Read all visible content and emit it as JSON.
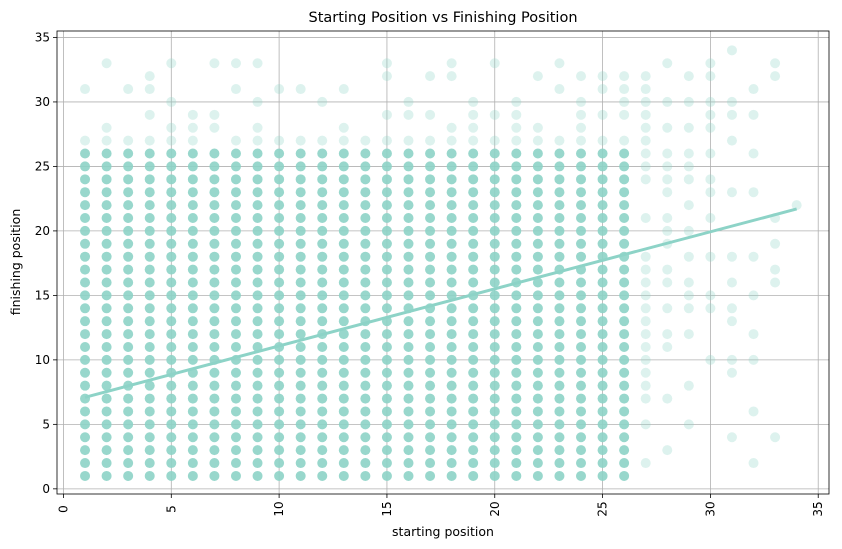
{
  "chart_data": {
    "type": "scatter",
    "title": "Starting Position vs Finishing Position",
    "xlabel": "starting position",
    "ylabel": "finishing position",
    "xlim": [
      -0.3,
      35.5
    ],
    "ylim": [
      -0.4,
      35.5
    ],
    "xticks": [
      0,
      5,
      10,
      15,
      20,
      25,
      30,
      35
    ],
    "yticks": [
      0,
      5,
      10,
      15,
      20,
      25,
      30,
      35
    ],
    "grid": true,
    "point_color": "#8dd3c7",
    "dense_region": {
      "x_range": [
        1,
        26
      ],
      "y_range": [
        1,
        26
      ],
      "description": "every integer starting position 1–26 paired with every integer finishing position 1–26"
    },
    "sparse_points": [
      [
        1,
        27
      ],
      [
        1,
        31
      ],
      [
        2,
        27
      ],
      [
        2,
        28
      ],
      [
        2,
        33
      ],
      [
        3,
        27
      ],
      [
        3,
        31
      ],
      [
        4,
        27
      ],
      [
        4,
        29
      ],
      [
        4,
        31
      ],
      [
        4,
        32
      ],
      [
        5,
        27
      ],
      [
        5,
        28
      ],
      [
        5,
        30
      ],
      [
        5,
        33
      ],
      [
        6,
        27
      ],
      [
        6,
        28
      ],
      [
        6,
        29
      ],
      [
        7,
        28
      ],
      [
        7,
        29
      ],
      [
        7,
        33
      ],
      [
        8,
        27
      ],
      [
        8,
        31
      ],
      [
        8,
        33
      ],
      [
        9,
        27
      ],
      [
        9,
        28
      ],
      [
        9,
        30
      ],
      [
        9,
        33
      ],
      [
        10,
        27
      ],
      [
        10,
        31
      ],
      [
        11,
        27
      ],
      [
        11,
        31
      ],
      [
        12,
        27
      ],
      [
        12,
        30
      ],
      [
        13,
        27
      ],
      [
        13,
        28
      ],
      [
        13,
        31
      ],
      [
        14,
        27
      ],
      [
        15,
        27
      ],
      [
        15,
        29
      ],
      [
        15,
        32
      ],
      [
        15,
        33
      ],
      [
        16,
        27
      ],
      [
        16,
        29
      ],
      [
        16,
        30
      ],
      [
        17,
        27
      ],
      [
        17,
        29
      ],
      [
        17,
        32
      ],
      [
        18,
        27
      ],
      [
        18,
        28
      ],
      [
        18,
        32
      ],
      [
        18,
        33
      ],
      [
        19,
        27
      ],
      [
        19,
        28
      ],
      [
        19,
        29
      ],
      [
        19,
        30
      ],
      [
        20,
        27
      ],
      [
        20,
        29
      ],
      [
        20,
        33
      ],
      [
        21,
        27
      ],
      [
        21,
        28
      ],
      [
        21,
        29
      ],
      [
        21,
        30
      ],
      [
        22,
        27
      ],
      [
        22,
        28
      ],
      [
        22,
        32
      ],
      [
        23,
        27
      ],
      [
        23,
        31
      ],
      [
        23,
        33
      ],
      [
        24,
        27
      ],
      [
        24,
        28
      ],
      [
        24,
        29
      ],
      [
        24,
        30
      ],
      [
        24,
        32
      ],
      [
        25,
        27
      ],
      [
        25,
        29
      ],
      [
        25,
        31
      ],
      [
        25,
        32
      ],
      [
        26,
        27
      ],
      [
        26,
        29
      ],
      [
        26,
        30
      ],
      [
        26,
        31
      ],
      [
        26,
        32
      ],
      [
        27,
        2
      ],
      [
        27,
        5
      ],
      [
        27,
        7
      ],
      [
        27,
        8
      ],
      [
        27,
        9
      ],
      [
        27,
        10
      ],
      [
        27,
        11
      ],
      [
        27,
        12
      ],
      [
        27,
        13
      ],
      [
        27,
        14
      ],
      [
        27,
        15
      ],
      [
        27,
        16
      ],
      [
        27,
        17
      ],
      [
        27,
        18
      ],
      [
        27,
        21
      ],
      [
        27,
        24
      ],
      [
        27,
        25
      ],
      [
        27,
        26
      ],
      [
        27,
        27
      ],
      [
        27,
        28
      ],
      [
        27,
        29
      ],
      [
        27,
        30
      ],
      [
        27,
        31
      ],
      [
        27,
        32
      ],
      [
        28,
        3
      ],
      [
        28,
        7
      ],
      [
        28,
        11
      ],
      [
        28,
        12
      ],
      [
        28,
        14
      ],
      [
        28,
        16
      ],
      [
        28,
        17
      ],
      [
        28,
        19
      ],
      [
        28,
        20
      ],
      [
        28,
        21
      ],
      [
        28,
        23
      ],
      [
        28,
        24
      ],
      [
        28,
        25
      ],
      [
        28,
        26
      ],
      [
        28,
        28
      ],
      [
        28,
        30
      ],
      [
        28,
        33
      ],
      [
        29,
        5
      ],
      [
        29,
        8
      ],
      [
        29,
        12
      ],
      [
        29,
        14
      ],
      [
        29,
        15
      ],
      [
        29,
        16
      ],
      [
        29,
        18
      ],
      [
        29,
        20
      ],
      [
        29,
        22
      ],
      [
        29,
        24
      ],
      [
        29,
        25
      ],
      [
        29,
        26
      ],
      [
        29,
        28
      ],
      [
        29,
        30
      ],
      [
        29,
        32
      ],
      [
        30,
        10
      ],
      [
        30,
        14
      ],
      [
        30,
        15
      ],
      [
        30,
        18
      ],
      [
        30,
        21
      ],
      [
        30,
        23
      ],
      [
        30,
        24
      ],
      [
        30,
        26
      ],
      [
        30,
        28
      ],
      [
        30,
        29
      ],
      [
        30,
        30
      ],
      [
        30,
        32
      ],
      [
        30,
        33
      ],
      [
        31,
        4
      ],
      [
        31,
        9
      ],
      [
        31,
        10
      ],
      [
        31,
        13
      ],
      [
        31,
        14
      ],
      [
        31,
        16
      ],
      [
        31,
        18
      ],
      [
        31,
        23
      ],
      [
        31,
        27
      ],
      [
        31,
        29
      ],
      [
        31,
        30
      ],
      [
        31,
        34
      ],
      [
        32,
        2
      ],
      [
        32,
        6
      ],
      [
        32,
        10
      ],
      [
        32,
        12
      ],
      [
        32,
        15
      ],
      [
        32,
        18
      ],
      [
        32,
        23
      ],
      [
        32,
        26
      ],
      [
        32,
        29
      ],
      [
        32,
        31
      ],
      [
        33,
        4
      ],
      [
        33,
        16
      ],
      [
        33,
        17
      ],
      [
        33,
        19
      ],
      [
        33,
        21
      ],
      [
        33,
        32
      ],
      [
        33,
        33
      ],
      [
        34,
        22
      ]
    ],
    "trendline": {
      "x": [
        1,
        34
      ],
      "y": [
        7.1,
        21.7
      ]
    }
  }
}
